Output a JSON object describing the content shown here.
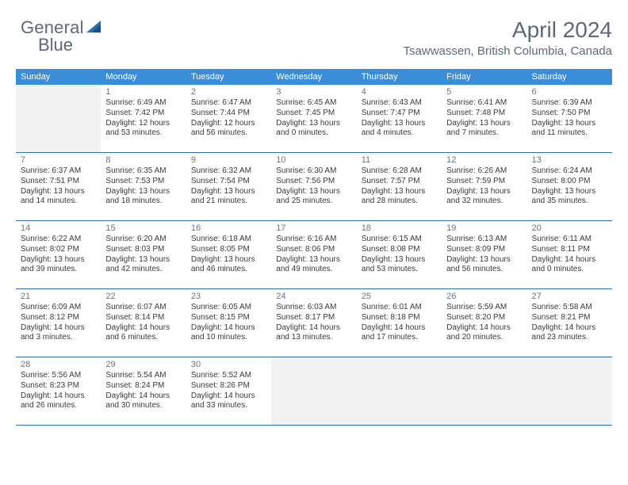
{
  "logo": {
    "word1": "General",
    "word2": "Blue"
  },
  "title": "April 2024",
  "location": "Tsawwassen, British Columbia, Canada",
  "daysOfWeek": [
    "Sunday",
    "Monday",
    "Tuesday",
    "Wednesday",
    "Thursday",
    "Friday",
    "Saturday"
  ],
  "header_bg": "#3a8dd8",
  "divider_color": "#2f6fa8",
  "weeks": [
    [
      {
        "blank": true
      },
      {
        "num": "1",
        "sunrise": "6:49 AM",
        "sunset": "7:42 PM",
        "daylight": "12 hours and 53 minutes."
      },
      {
        "num": "2",
        "sunrise": "6:47 AM",
        "sunset": "7:44 PM",
        "daylight": "12 hours and 56 minutes."
      },
      {
        "num": "3",
        "sunrise": "6:45 AM",
        "sunset": "7:45 PM",
        "daylight": "13 hours and 0 minutes."
      },
      {
        "num": "4",
        "sunrise": "6:43 AM",
        "sunset": "7:47 PM",
        "daylight": "13 hours and 4 minutes."
      },
      {
        "num": "5",
        "sunrise": "6:41 AM",
        "sunset": "7:48 PM",
        "daylight": "13 hours and 7 minutes."
      },
      {
        "num": "6",
        "sunrise": "6:39 AM",
        "sunset": "7:50 PM",
        "daylight": "13 hours and 11 minutes."
      }
    ],
    [
      {
        "num": "7",
        "sunrise": "6:37 AM",
        "sunset": "7:51 PM",
        "daylight": "13 hours and 14 minutes."
      },
      {
        "num": "8",
        "sunrise": "6:35 AM",
        "sunset": "7:53 PM",
        "daylight": "13 hours and 18 minutes."
      },
      {
        "num": "9",
        "sunrise": "6:32 AM",
        "sunset": "7:54 PM",
        "daylight": "13 hours and 21 minutes."
      },
      {
        "num": "10",
        "sunrise": "6:30 AM",
        "sunset": "7:56 PM",
        "daylight": "13 hours and 25 minutes."
      },
      {
        "num": "11",
        "sunrise": "6:28 AM",
        "sunset": "7:57 PM",
        "daylight": "13 hours and 28 minutes."
      },
      {
        "num": "12",
        "sunrise": "6:26 AM",
        "sunset": "7:59 PM",
        "daylight": "13 hours and 32 minutes."
      },
      {
        "num": "13",
        "sunrise": "6:24 AM",
        "sunset": "8:00 PM",
        "daylight": "13 hours and 35 minutes."
      }
    ],
    [
      {
        "num": "14",
        "sunrise": "6:22 AM",
        "sunset": "8:02 PM",
        "daylight": "13 hours and 39 minutes."
      },
      {
        "num": "15",
        "sunrise": "6:20 AM",
        "sunset": "8:03 PM",
        "daylight": "13 hours and 42 minutes."
      },
      {
        "num": "16",
        "sunrise": "6:18 AM",
        "sunset": "8:05 PM",
        "daylight": "13 hours and 46 minutes."
      },
      {
        "num": "17",
        "sunrise": "6:16 AM",
        "sunset": "8:06 PM",
        "daylight": "13 hours and 49 minutes."
      },
      {
        "num": "18",
        "sunrise": "6:15 AM",
        "sunset": "8:08 PM",
        "daylight": "13 hours and 53 minutes."
      },
      {
        "num": "19",
        "sunrise": "6:13 AM",
        "sunset": "8:09 PM",
        "daylight": "13 hours and 56 minutes."
      },
      {
        "num": "20",
        "sunrise": "6:11 AM",
        "sunset": "8:11 PM",
        "daylight": "14 hours and 0 minutes."
      }
    ],
    [
      {
        "num": "21",
        "sunrise": "6:09 AM",
        "sunset": "8:12 PM",
        "daylight": "14 hours and 3 minutes."
      },
      {
        "num": "22",
        "sunrise": "6:07 AM",
        "sunset": "8:14 PM",
        "daylight": "14 hours and 6 minutes."
      },
      {
        "num": "23",
        "sunrise": "6:05 AM",
        "sunset": "8:15 PM",
        "daylight": "14 hours and 10 minutes."
      },
      {
        "num": "24",
        "sunrise": "6:03 AM",
        "sunset": "8:17 PM",
        "daylight": "14 hours and 13 minutes."
      },
      {
        "num": "25",
        "sunrise": "6:01 AM",
        "sunset": "8:18 PM",
        "daylight": "14 hours and 17 minutes."
      },
      {
        "num": "26",
        "sunrise": "5:59 AM",
        "sunset": "8:20 PM",
        "daylight": "14 hours and 20 minutes."
      },
      {
        "num": "27",
        "sunrise": "5:58 AM",
        "sunset": "8:21 PM",
        "daylight": "14 hours and 23 minutes."
      }
    ],
    [
      {
        "num": "28",
        "sunrise": "5:56 AM",
        "sunset": "8:23 PM",
        "daylight": "14 hours and 26 minutes."
      },
      {
        "num": "29",
        "sunrise": "5:54 AM",
        "sunset": "8:24 PM",
        "daylight": "14 hours and 30 minutes."
      },
      {
        "num": "30",
        "sunrise": "5:52 AM",
        "sunset": "8:26 PM",
        "daylight": "14 hours and 33 minutes."
      },
      {
        "blank": true
      },
      {
        "blank": true
      },
      {
        "blank": true
      },
      {
        "blank": true
      }
    ]
  ],
  "labels": {
    "sunrise": "Sunrise: ",
    "sunset": "Sunset: ",
    "daylight": "Daylight: "
  }
}
